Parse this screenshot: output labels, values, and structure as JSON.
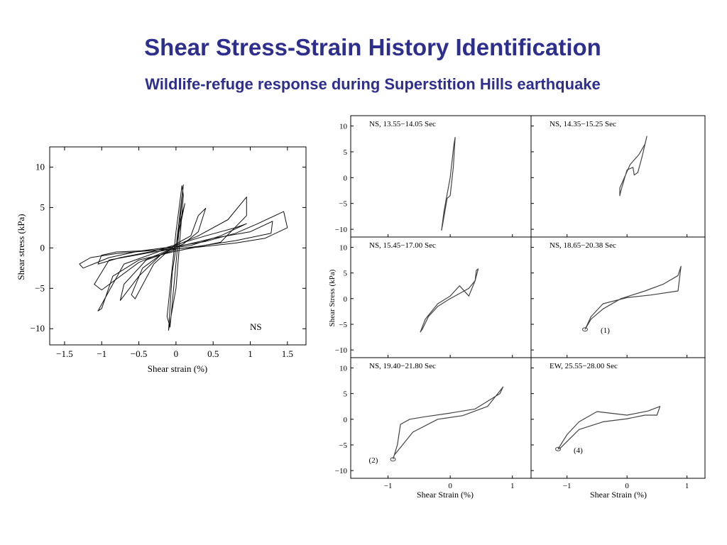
{
  "slide": {
    "title": "Shear Stress-Strain History Identification",
    "subtitle": "Wildlife-refuge response during Superstition Hills earthquake"
  },
  "chart_data": [
    {
      "type": "line",
      "id": "main",
      "annotation": "NS",
      "xlabel": "Shear strain (%)",
      "ylabel": "Shear stress (kPa)",
      "xlim": [
        -1.7,
        1.75
      ],
      "ylim": [
        -12,
        12.5
      ],
      "xticks": [
        "−1.5",
        "−1",
        "−0.5",
        "0",
        "0.5",
        "1",
        "1.5"
      ],
      "yticks": [
        "10",
        "5",
        "0",
        "−5",
        "−10"
      ],
      "grid": false,
      "series": [
        {
          "x": [
            0.0,
            0.05,
            0.1,
            0.05,
            -0.05,
            -0.1,
            0.0,
            0.1,
            0.08,
            0.0,
            -0.12,
            -0.08,
            0.05,
            0.12,
            0.0
          ],
          "y": [
            0.0,
            4.0,
            7.8,
            3.0,
            -3.0,
            -10.2,
            -5.0,
            6.5,
            7.7,
            2.0,
            -8.5,
            -9.8,
            3.0,
            5.5,
            0.2
          ]
        },
        {
          "x": [
            0.0,
            0.3,
            0.7,
            0.95,
            0.95,
            0.6,
            0.0,
            -0.5,
            -0.85,
            -1.0,
            -1.05,
            -0.7,
            0.0
          ],
          "y": [
            0.3,
            1.5,
            3.5,
            6.3,
            4.0,
            0.7,
            -0.4,
            -1.5,
            -3.5,
            -7.5,
            -7.8,
            -2.0,
            0.3
          ]
        },
        {
          "x": [
            0.0,
            0.4,
            0.8,
            1.1,
            1.45,
            1.5,
            1.2,
            0.8,
            0.3,
            -0.3,
            -0.8,
            -1.15,
            -1.3,
            -1.25,
            -0.9,
            -0.5,
            0.0
          ],
          "y": [
            0.2,
            0.8,
            1.8,
            3.0,
            4.5,
            2.5,
            1.2,
            0.6,
            0.1,
            -0.3,
            -0.7,
            -1.2,
            -2.0,
            -2.5,
            -1.2,
            -0.4,
            0.2
          ]
        },
        {
          "x": [
            0.0,
            0.5,
            1.0,
            1.3,
            1.28,
            0.8,
            0.3,
            -0.3,
            -0.9,
            -1.1,
            -1.0,
            -0.5,
            0.0
          ],
          "y": [
            0.1,
            1.2,
            2.0,
            3.3,
            1.8,
            0.9,
            0.2,
            -0.5,
            -1.5,
            -4.5,
            -5.2,
            -1.8,
            0.1
          ]
        },
        {
          "x": [
            0.0,
            0.2,
            0.3,
            0.4,
            0.3,
            0.1,
            -0.2,
            -0.45,
            -0.6,
            -0.55,
            -0.3,
            0.0
          ],
          "y": [
            0.5,
            1.5,
            4.0,
            4.9,
            2.0,
            0.5,
            -0.8,
            -2.5,
            -5.8,
            -6.3,
            -2.0,
            0.5
          ]
        },
        {
          "x": [
            0.0,
            0.4,
            0.8,
            0.95,
            0.6,
            0.2,
            -0.3,
            -0.8,
            -1.0,
            -1.05,
            -0.75,
            -0.3,
            0.0
          ],
          "y": [
            0.4,
            1.5,
            2.5,
            3.0,
            1.5,
            0.3,
            -0.3,
            -0.5,
            -0.9,
            -2.0,
            -1.2,
            -0.4,
            0.4
          ]
        },
        {
          "x": [
            0.0,
            -0.4,
            -0.7,
            -0.75,
            -0.5,
            -0.2,
            0.0
          ],
          "y": [
            -0.2,
            -1.5,
            -4.5,
            -6.5,
            -3.5,
            -0.8,
            -0.2
          ]
        }
      ]
    },
    {
      "type": "line",
      "id": "panel-1",
      "title": "NS, 13.55−14.05 Sec",
      "xlim": [
        -1.6,
        1.3
      ],
      "ylim": [
        -11.5,
        12
      ],
      "series": [
        {
          "x": [
            0.0,
            0.05,
            0.08,
            0.06,
            0.0,
            -0.1,
            -0.14,
            -0.12,
            -0.05,
            0.0
          ],
          "y": [
            -3.5,
            2.0,
            7.8,
            6.5,
            0.0,
            -6.5,
            -10.2,
            -9.0,
            -4.0,
            -3.5
          ]
        }
      ]
    },
    {
      "type": "line",
      "id": "panel-2",
      "title": "NS, 14.35−15.25 Sec",
      "xlim": [
        -1.6,
        1.3
      ],
      "ylim": [
        -11.5,
        12
      ],
      "series": [
        {
          "x": [
            -0.12,
            0.05,
            0.2,
            0.3,
            0.33,
            0.25,
            0.18,
            0.12,
            0.1,
            0.0,
            -0.05,
            -0.1,
            -0.12,
            -0.12
          ],
          "y": [
            -2.0,
            2.5,
            4.5,
            6.5,
            8.0,
            4.0,
            1.0,
            0.5,
            2.0,
            1.5,
            -0.5,
            -2.5,
            -3.5,
            -2.0
          ]
        }
      ]
    },
    {
      "type": "line",
      "id": "panel-3",
      "title": "NS, 15.45−17.00 Sec",
      "xlim": [
        -1.6,
        1.3
      ],
      "ylim": [
        -11.5,
        12
      ],
      "series": [
        {
          "x": [
            0.42,
            0.4,
            0.3,
            0.15,
            0.0,
            -0.2,
            -0.35,
            -0.45,
            -0.48,
            -0.4,
            -0.2,
            0.0,
            0.15,
            0.3,
            0.4,
            0.45,
            0.42
          ],
          "y": [
            5.5,
            3.5,
            2.0,
            1.0,
            0.0,
            -1.5,
            -3.5,
            -6.0,
            -6.5,
            -4.0,
            -1.0,
            0.5,
            2.5,
            0.5,
            3.5,
            5.8,
            5.5
          ]
        }
      ]
    },
    {
      "type": "line",
      "id": "panel-4",
      "title": "NS, 18.65−20.38 Sec",
      "annotations": [
        "(1)"
      ],
      "xlim": [
        -1.6,
        1.3
      ],
      "ylim": [
        -11.5,
        12
      ],
      "series": [
        {
          "x": [
            -0.7,
            -0.6,
            -0.4,
            -0.1,
            0.3,
            0.6,
            0.85,
            0.9,
            0.85,
            0.4,
            0.0,
            -0.4,
            -0.6,
            -0.7
          ],
          "y": [
            -6.0,
            -4.0,
            -2.0,
            0.0,
            1.5,
            2.8,
            4.5,
            6.3,
            1.5,
            0.7,
            0.2,
            -1.0,
            -3.5,
            -6.0
          ]
        }
      ]
    },
    {
      "type": "line",
      "id": "panel-5",
      "title": "NS, 19.40−21.80 Sec",
      "annotations": [
        "(2)"
      ],
      "xlim": [
        -1.6,
        1.3
      ],
      "ylim": [
        -11.5,
        12
      ],
      "series": [
        {
          "x": [
            -0.92,
            -0.85,
            -0.8,
            -0.65,
            -0.4,
            0.0,
            0.4,
            0.6,
            0.8,
            0.85,
            0.6,
            0.2,
            -0.2,
            -0.6,
            -0.9,
            -0.92
          ],
          "y": [
            -7.8,
            -5.0,
            -1.0,
            0.0,
            0.5,
            1.2,
            2.0,
            3.5,
            5.0,
            6.3,
            2.5,
            0.7,
            0.0,
            -2.5,
            -7.0,
            -7.8
          ]
        }
      ]
    },
    {
      "type": "line",
      "id": "panel-6",
      "title": "EW, 25.55−28.00 Sec",
      "annotations": [
        "(4)"
      ],
      "xlim": [
        -1.6,
        1.3
      ],
      "ylim": [
        -11.5,
        12
      ],
      "series": [
        {
          "x": [
            -1.15,
            -1.0,
            -0.8,
            -0.5,
            0.0,
            0.35,
            0.55,
            0.5,
            0.3,
            0.0,
            -0.4,
            -0.8,
            -1.1,
            -1.15
          ],
          "y": [
            -5.8,
            -3.0,
            -0.5,
            1.5,
            0.8,
            1.6,
            2.5,
            0.8,
            0.8,
            0.1,
            -0.5,
            -2.0,
            -5.5,
            -5.8
          ]
        }
      ]
    }
  ],
  "panel_axes": {
    "ylabel": "Shear Stress (kPa)",
    "xlabel": "Shear Strain (%)",
    "yticks": [
      "10",
      "5",
      "0",
      "−5",
      "−10"
    ],
    "xticks": [
      "−1",
      "0",
      "1"
    ]
  }
}
